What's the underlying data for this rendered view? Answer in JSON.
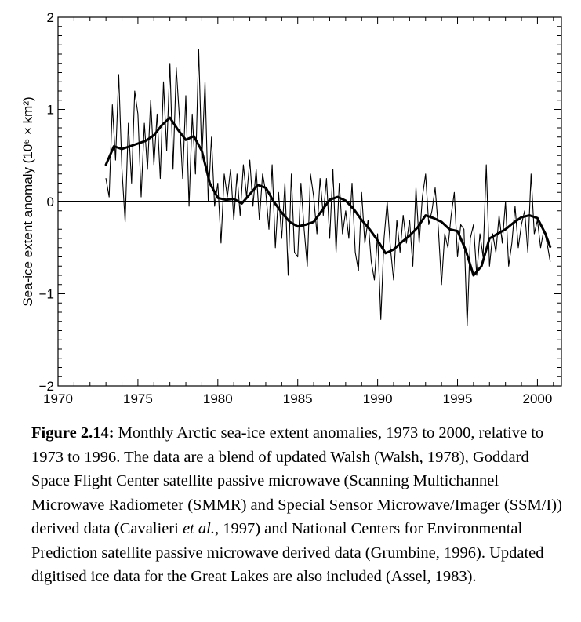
{
  "chart_data": {
    "type": "line",
    "title": "",
    "xlabel": "",
    "ylabel": "Sea-ice extent anomaly (10⁶ × km²)",
    "xlim": [
      1970,
      2001.5
    ],
    "ylim": [
      -2,
      2
    ],
    "x_ticks": [
      1970,
      1975,
      1980,
      1985,
      1990,
      1995,
      2000
    ],
    "x_tick_labels": [
      "1970",
      "1975",
      "1980",
      "1985",
      "1990",
      "1995",
      "2000"
    ],
    "y_ticks": [
      -2,
      -1,
      0,
      1,
      2
    ],
    "y_tick_labels": [
      "−2",
      "−1",
      "0",
      "1",
      "2"
    ],
    "reference_line_y": 0,
    "grid": false,
    "legend": "none",
    "series": [
      {
        "style": "thin",
        "x": [
          1973.0,
          1973.2,
          1973.4,
          1973.6,
          1973.8,
          1974.0,
          1974.2,
          1974.4,
          1974.6,
          1974.8,
          1975.0,
          1975.2,
          1975.4,
          1975.6,
          1975.8,
          1976.0,
          1976.2,
          1976.4,
          1976.6,
          1976.8,
          1977.0,
          1977.2,
          1977.4,
          1977.6,
          1977.8,
          1978.0,
          1978.2,
          1978.4,
          1978.6,
          1978.8,
          1979.0,
          1979.2,
          1979.4,
          1979.6,
          1979.8,
          1980.0,
          1980.2,
          1980.4,
          1980.6,
          1980.8,
          1981.0,
          1981.2,
          1981.4,
          1981.6,
          1981.8,
          1982.0,
          1982.2,
          1982.4,
          1982.6,
          1982.8,
          1983.0,
          1983.2,
          1983.4,
          1983.6,
          1983.8,
          1984.0,
          1984.2,
          1984.4,
          1984.6,
          1984.8,
          1985.0,
          1985.2,
          1985.4,
          1985.6,
          1985.8,
          1986.0,
          1986.2,
          1986.4,
          1986.6,
          1986.8,
          1987.0,
          1987.2,
          1987.4,
          1987.6,
          1987.8,
          1988.0,
          1988.2,
          1988.4,
          1988.6,
          1988.8,
          1989.0,
          1989.2,
          1989.4,
          1989.6,
          1989.8,
          1990.0,
          1990.2,
          1990.4,
          1990.6,
          1990.8,
          1991.0,
          1991.2,
          1991.4,
          1991.6,
          1991.8,
          1992.0,
          1992.2,
          1992.4,
          1992.6,
          1992.8,
          1993.0,
          1993.2,
          1993.4,
          1993.6,
          1993.8,
          1994.0,
          1994.2,
          1994.4,
          1994.6,
          1994.8,
          1995.0,
          1995.2,
          1995.4,
          1995.6,
          1995.8,
          1996.0,
          1996.2,
          1996.4,
          1996.6,
          1996.8,
          1997.0,
          1997.2,
          1997.4,
          1997.6,
          1997.8,
          1998.0,
          1998.2,
          1998.4,
          1998.6,
          1998.8,
          1999.0,
          1999.2,
          1999.4,
          1999.6,
          1999.8,
          2000.0,
          2000.2,
          2000.4,
          2000.6,
          2000.8
        ],
        "y": [
          0.25,
          0.05,
          1.05,
          0.45,
          1.38,
          0.35,
          -0.22,
          0.85,
          0.2,
          1.2,
          0.95,
          0.05,
          0.85,
          0.35,
          1.1,
          0.4,
          0.95,
          0.25,
          1.3,
          0.55,
          1.5,
          0.35,
          1.45,
          0.9,
          0.25,
          1.15,
          -0.05,
          0.95,
          0.3,
          1.65,
          0.45,
          1.3,
          0.0,
          0.7,
          -0.05,
          0.2,
          -0.45,
          0.3,
          0.05,
          0.35,
          -0.2,
          0.3,
          -0.15,
          0.4,
          0.05,
          0.45,
          -0.05,
          0.35,
          -0.2,
          0.3,
          0.1,
          -0.3,
          0.4,
          -0.5,
          0.1,
          -0.4,
          0.2,
          -0.8,
          0.3,
          -0.55,
          -0.6,
          0.2,
          -0.3,
          -0.7,
          0.3,
          0.05,
          -0.35,
          0.25,
          -0.15,
          0.25,
          -0.4,
          0.35,
          -0.55,
          0.2,
          -0.35,
          -0.1,
          -0.4,
          0.2,
          -0.55,
          -0.75,
          0.1,
          -0.45,
          -0.2,
          -0.65,
          -0.85,
          -0.35,
          -1.28,
          -0.4,
          0.0,
          -0.5,
          -0.85,
          -0.2,
          -0.55,
          -0.15,
          -0.45,
          -0.2,
          -0.7,
          0.15,
          -0.45,
          0.05,
          0.3,
          -0.25,
          -0.1,
          0.15,
          -0.3,
          -0.9,
          -0.35,
          -0.5,
          -0.15,
          0.1,
          -0.6,
          -0.25,
          -0.3,
          -1.35,
          -0.4,
          -0.25,
          -0.8,
          -0.35,
          -0.6,
          0.4,
          -0.7,
          -0.35,
          -0.55,
          -0.15,
          -0.45,
          0.0,
          -0.7,
          -0.45,
          -0.05,
          -0.5,
          -0.25,
          -0.1,
          -0.55,
          0.3,
          -0.35,
          -0.2,
          -0.5,
          -0.3,
          -0.45,
          -0.65
        ]
      },
      {
        "style": "thick",
        "x": [
          1973.0,
          1973.5,
          1974.0,
          1974.5,
          1975.0,
          1975.5,
          1976.0,
          1976.5,
          1977.0,
          1977.5,
          1978.0,
          1978.5,
          1979.0,
          1979.5,
          1980.0,
          1980.5,
          1981.0,
          1981.5,
          1982.0,
          1982.5,
          1983.0,
          1983.5,
          1984.0,
          1984.5,
          1985.0,
          1985.5,
          1986.0,
          1986.5,
          1987.0,
          1987.5,
          1988.0,
          1988.5,
          1989.0,
          1989.5,
          1990.0,
          1990.5,
          1991.0,
          1991.5,
          1992.0,
          1992.5,
          1993.0,
          1993.5,
          1994.0,
          1994.5,
          1995.0,
          1995.5,
          1996.0,
          1996.5,
          1997.0,
          1997.5,
          1998.0,
          1998.5,
          1999.0,
          1999.5,
          2000.0,
          2000.5,
          2000.8
        ],
        "y": [
          0.4,
          0.6,
          0.57,
          0.6,
          0.63,
          0.66,
          0.72,
          0.83,
          0.91,
          0.78,
          0.67,
          0.71,
          0.55,
          0.2,
          0.04,
          0.02,
          0.03,
          -0.02,
          0.08,
          0.18,
          0.15,
          0.0,
          -0.12,
          -0.22,
          -0.27,
          -0.25,
          -0.22,
          -0.1,
          0.02,
          0.05,
          0.01,
          -0.08,
          -0.2,
          -0.3,
          -0.42,
          -0.56,
          -0.52,
          -0.44,
          -0.37,
          -0.28,
          -0.15,
          -0.18,
          -0.22,
          -0.3,
          -0.32,
          -0.52,
          -0.8,
          -0.7,
          -0.4,
          -0.35,
          -0.3,
          -0.23,
          -0.17,
          -0.15,
          -0.18,
          -0.35,
          -0.49
        ]
      }
    ]
  },
  "caption": {
    "label": "Figure 2.14:",
    "text_before_italic": " Monthly Arctic sea-ice extent anomalies, 1973 to 2000, relative to 1973 to 1996. The data are a blend of updated Walsh (Walsh, 1978), Goddard Space Flight Center satellite passive microwave (Scanning Multichannel Microwave Radiometer (SMMR) and Special Sensor Microwave/Imager (SSM/I)) derived data (Cavalieri ",
    "italic": "et al.",
    "text_after_italic": ", 1997) and National Centers for Environmental Prediction satellite passive microwave derived data (Grumbine, 1996). Updated digitised ice data for the Great Lakes are also included (Assel, 1983)."
  }
}
